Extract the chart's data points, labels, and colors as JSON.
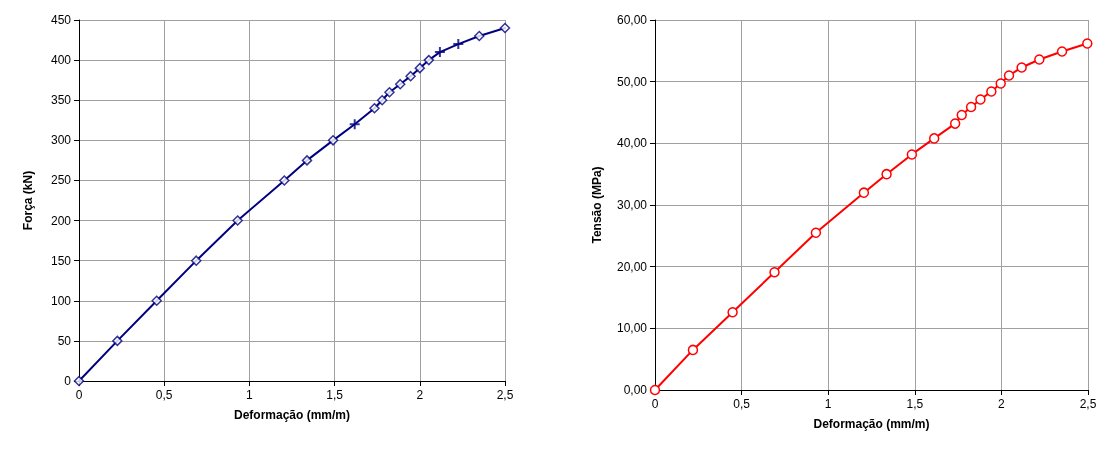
{
  "chart_data": [
    {
      "type": "line",
      "xlabel": "Deformação (mm/m)",
      "ylabel": "Força (kN)",
      "xlim": [
        0,
        2.5
      ],
      "ylim": [
        0,
        450
      ],
      "xticks": [
        0,
        {
          "value": 0.5,
          "label": "0,5"
        },
        1,
        {
          "value": 1.5,
          "label": "1,5"
        },
        2,
        {
          "value": 2.5,
          "label": "2,5"
        }
      ],
      "yticks": [
        0,
        50,
        100,
        150,
        200,
        250,
        300,
        350,
        400,
        450
      ],
      "grid": true,
      "series": [
        {
          "marker": "none",
          "color": "#000080",
          "x": [
            0,
            0.225,
            0.456,
            0.688,
            0.931,
            1.205,
            1.338,
            1.491,
            1.618,
            1.734,
            1.779,
            1.822,
            1.885,
            1.946,
            2.0,
            2.053,
            2.118,
            2.226,
            2.349,
            2.5
          ],
          "values": [
            0,
            50,
            100,
            150,
            200,
            250,
            275,
            300,
            320,
            340,
            350,
            360,
            370,
            380,
            390,
            400,
            410,
            420,
            430,
            440
          ]
        },
        {
          "type": "scatter",
          "marker": "diamond",
          "color": "#000080",
          "x": [
            0,
            0.225,
            0.456,
            0.688,
            0.931,
            1.205,
            1.338,
            1.491,
            1.734,
            1.779,
            1.822,
            1.885,
            1.946,
            2.0,
            2.053,
            2.349,
            2.5
          ],
          "values": [
            0,
            50,
            100,
            150,
            200,
            250,
            275,
            300,
            340,
            350,
            360,
            370,
            380,
            390,
            400,
            430,
            440
          ]
        },
        {
          "type": "scatter",
          "marker": "cross",
          "color": "#000080",
          "x": [
            1.618,
            2.118,
            2.226
          ],
          "values": [
            320,
            410,
            420
          ]
        }
      ]
    },
    {
      "type": "line",
      "xlabel": "Deformação (mm/m)",
      "ylabel": "Tensão (MPa)",
      "xlim": [
        0,
        2.5
      ],
      "ylim": [
        0,
        60
      ],
      "xticks": [
        0,
        {
          "value": 0.5,
          "label": "0,5"
        },
        1,
        {
          "value": 1.5,
          "label": "1,5"
        },
        2,
        {
          "value": 2.5,
          "label": "2,5"
        }
      ],
      "yticks": [
        {
          "value": 0,
          "label": "0,00"
        },
        {
          "value": 10,
          "label": "10,00"
        },
        {
          "value": 20,
          "label": "20,00"
        },
        {
          "value": 30,
          "label": "30,00"
        },
        {
          "value": 40,
          "label": "40,00"
        },
        {
          "value": 50,
          "label": "50,00"
        },
        {
          "value": 60,
          "label": "60,00"
        }
      ],
      "grid": true,
      "series": [
        {
          "marker": "circle",
          "color": "#ff0000",
          "x": [
            0,
            0.219,
            0.448,
            0.69,
            0.929,
            1.206,
            1.337,
            1.483,
            1.612,
            1.733,
            1.771,
            1.825,
            1.879,
            1.942,
            1.996,
            2.044,
            2.117,
            2.219,
            2.35,
            2.496
          ],
          "values": [
            0,
            6.5,
            12.6,
            19.1,
            25.5,
            32.0,
            35.0,
            38.2,
            40.8,
            43.2,
            44.6,
            45.9,
            47.1,
            48.4,
            49.7,
            51.0,
            52.3,
            53.6,
            54.9,
            56.2
          ]
        }
      ]
    }
  ]
}
